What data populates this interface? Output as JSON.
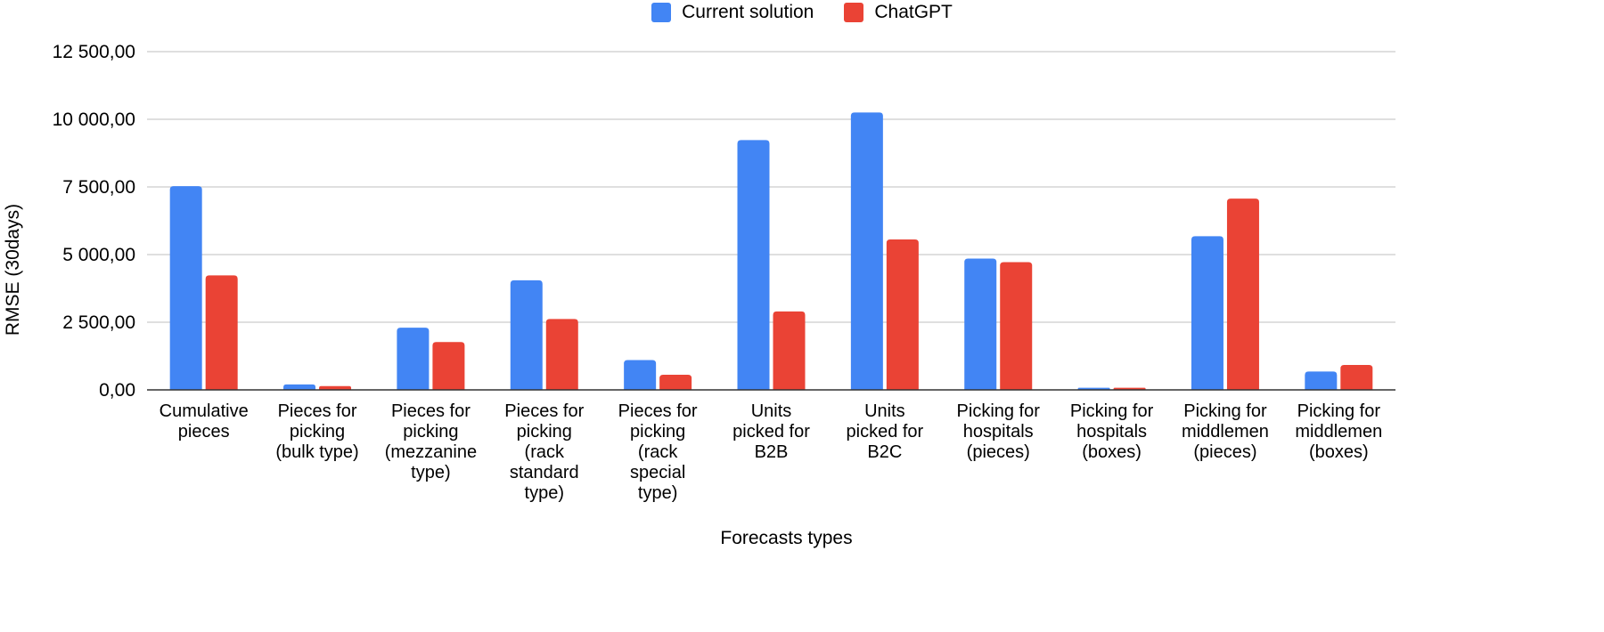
{
  "chart_data": {
    "type": "bar",
    "title": "",
    "xlabel": "Forecasts types",
    "ylabel": "RMSE (30days)",
    "ylim": [
      0,
      12500
    ],
    "yticks": [
      0,
      2500,
      5000,
      7500,
      10000,
      12500
    ],
    "ytick_labels": [
      "0,00",
      "2 500,00",
      "5 000,00",
      "7 500,00",
      "10 000,00",
      "12 500,00"
    ],
    "grid": true,
    "legend_position": "top-center",
    "categories": [
      [
        "Cumulative",
        "pieces"
      ],
      [
        "Pieces for",
        "picking",
        "(bulk type)"
      ],
      [
        "Pieces for",
        "picking",
        "(mezzanine",
        "type)"
      ],
      [
        "Pieces for",
        "picking",
        "(rack",
        "standard",
        "type)"
      ],
      [
        "Pieces for",
        "picking",
        "(rack",
        "special",
        "type)"
      ],
      [
        "Units",
        "picked for",
        "B2B"
      ],
      [
        "Units",
        "picked for",
        "B2C"
      ],
      [
        "Picking for",
        "hospitals",
        "(pieces)"
      ],
      [
        "Picking for",
        "hospitals",
        "(boxes)"
      ],
      [
        "Picking for",
        "middlemen",
        "(pieces)"
      ],
      [
        "Picking for",
        "middlemen",
        "(boxes)"
      ]
    ],
    "series": [
      {
        "name": "Current solution",
        "color": "#4285F4",
        "values": [
          7530,
          200,
          2300,
          4050,
          1100,
          9230,
          10250,
          4850,
          80,
          5680,
          680
        ]
      },
      {
        "name": "ChatGPT",
        "color": "#EA4335",
        "values": [
          4230,
          140,
          1770,
          2620,
          560,
          2900,
          5560,
          4720,
          80,
          7070,
          920
        ]
      }
    ]
  }
}
